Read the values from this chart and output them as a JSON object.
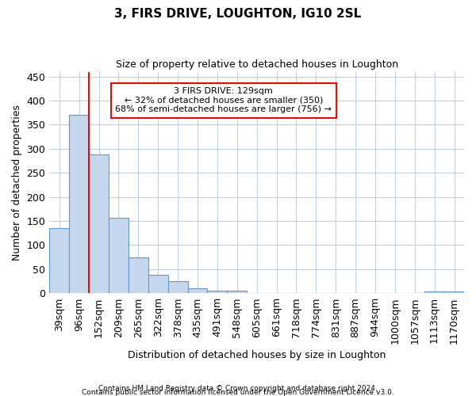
{
  "title": "3, FIRS DRIVE, LOUGHTON, IG10 2SL",
  "subtitle": "Size of property relative to detached houses in Loughton",
  "xlabel": "Distribution of detached houses by size in Loughton",
  "ylabel": "Number of detached properties",
  "categories": [
    "39sqm",
    "96sqm",
    "152sqm",
    "209sqm",
    "265sqm",
    "322sqm",
    "378sqm",
    "435sqm",
    "491sqm",
    "548sqm",
    "605sqm",
    "661sqm",
    "718sqm",
    "774sqm",
    "831sqm",
    "887sqm",
    "944sqm",
    "1000sqm",
    "1057sqm",
    "1113sqm",
    "1170sqm"
  ],
  "values": [
    136,
    370,
    288,
    156,
    75,
    38,
    25,
    10,
    5,
    5,
    0,
    0,
    0,
    0,
    0,
    0,
    0,
    0,
    0,
    3,
    3
  ],
  "bar_color": "#c5d8ee",
  "bar_edge_color": "#5b9bd5",
  "annotation_line1": "3 FIRS DRIVE: 129sqm",
  "annotation_line2": "← 32% of detached houses are smaller (350)",
  "annotation_line3": "68% of semi-detached houses are larger (756) →",
  "ylim": [
    0,
    460
  ],
  "yticks": [
    0,
    50,
    100,
    150,
    200,
    250,
    300,
    350,
    400,
    450
  ],
  "footer_line1": "Contains HM Land Registry data © Crown copyright and database right 2024.",
  "footer_line2": "Contains public sector information licensed under the Open Government Licence v3.0.",
  "background_color": "#ffffff",
  "grid_color": "#c0d0e0"
}
